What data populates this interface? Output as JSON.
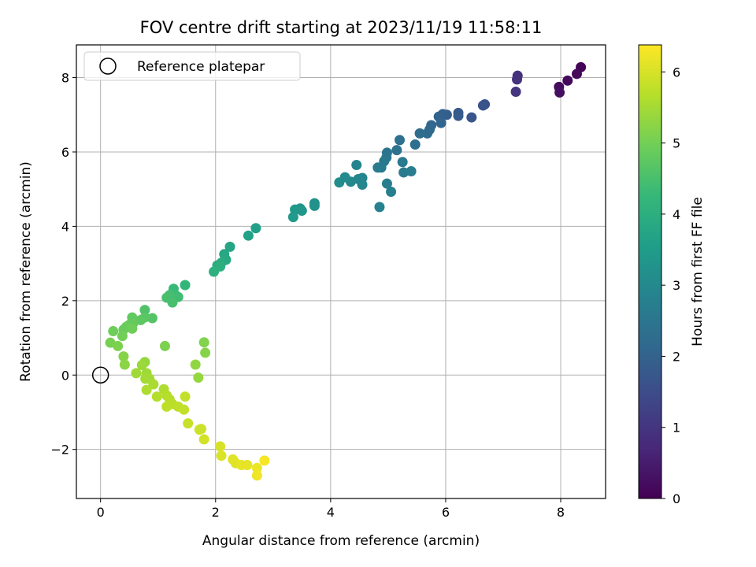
{
  "chart_data": {
    "type": "scatter",
    "title": "FOV centre drift starting at 2023/11/19 11:58:11",
    "xlabel": "Angular distance from reference (arcmin)",
    "ylabel": "Rotation from reference (arcmin)",
    "xlim": [
      -0.42,
      8.78
    ],
    "ylim": [
      -3.32,
      8.88
    ],
    "xticks": [
      0,
      2,
      4,
      6,
      8
    ],
    "xtick_labels": [
      "0",
      "2",
      "4",
      "6",
      "8"
    ],
    "yticks": [
      -2,
      0,
      2,
      4,
      6,
      8
    ],
    "ytick_labels": [
      "−2",
      "0",
      "2",
      "4",
      "6",
      "8"
    ],
    "grid": true,
    "legend": {
      "label": "Reference platepar",
      "placement": "top-left"
    },
    "reference_point": {
      "x": 0,
      "y": 0
    },
    "colorbar": {
      "label": "Hours from first FF file",
      "colormap": "viridis",
      "range": [
        0,
        6.38
      ],
      "ticks": [
        0,
        1,
        2,
        3,
        4,
        5,
        6
      ],
      "tick_labels": [
        "0",
        "1",
        "2",
        "3",
        "4",
        "5",
        "6"
      ],
      "colors": [
        "#440154",
        "#482878",
        "#3e4989",
        "#31688e",
        "#26828e",
        "#1f9e89",
        "#35b779",
        "#6ece58",
        "#b5de2b",
        "#fde725"
      ]
    },
    "points": [
      {
        "x": 8.35,
        "y": 8.28,
        "h": 0.05
      },
      {
        "x": 8.28,
        "y": 8.1,
        "h": 0.1
      },
      {
        "x": 8.12,
        "y": 7.92,
        "h": 0.15
      },
      {
        "x": 7.97,
        "y": 7.75,
        "h": 0.2
      },
      {
        "x": 7.98,
        "y": 7.6,
        "h": 0.25
      },
      {
        "x": 7.25,
        "y": 8.05,
        "h": 0.9
      },
      {
        "x": 7.24,
        "y": 7.95,
        "h": 0.95
      },
      {
        "x": 7.22,
        "y": 7.62,
        "h": 1.0
      },
      {
        "x": 6.68,
        "y": 7.28,
        "h": 1.6
      },
      {
        "x": 6.65,
        "y": 7.25,
        "h": 1.65
      },
      {
        "x": 6.45,
        "y": 6.93,
        "h": 1.7
      },
      {
        "x": 6.22,
        "y": 7.05,
        "h": 1.8
      },
      {
        "x": 6.22,
        "y": 6.97,
        "h": 1.85
      },
      {
        "x": 6.02,
        "y": 7.0,
        "h": 1.9
      },
      {
        "x": 5.95,
        "y": 7.02,
        "h": 1.95
      },
      {
        "x": 5.88,
        "y": 6.95,
        "h": 2.0
      },
      {
        "x": 5.92,
        "y": 6.78,
        "h": 2.05
      },
      {
        "x": 5.75,
        "y": 6.72,
        "h": 2.1
      },
      {
        "x": 5.72,
        "y": 6.6,
        "h": 2.15
      },
      {
        "x": 5.68,
        "y": 6.5,
        "h": 2.2
      },
      {
        "x": 5.55,
        "y": 6.5,
        "h": 2.25
      },
      {
        "x": 5.47,
        "y": 6.2,
        "h": 2.3
      },
      {
        "x": 5.2,
        "y": 6.32,
        "h": 2.35
      },
      {
        "x": 5.15,
        "y": 6.05,
        "h": 2.4
      },
      {
        "x": 4.98,
        "y": 5.98,
        "h": 2.45
      },
      {
        "x": 4.97,
        "y": 5.85,
        "h": 2.5
      },
      {
        "x": 4.93,
        "y": 5.75,
        "h": 2.55
      },
      {
        "x": 4.88,
        "y": 5.58,
        "h": 2.6
      },
      {
        "x": 4.82,
        "y": 5.58,
        "h": 2.65
      },
      {
        "x": 5.25,
        "y": 5.73,
        "h": 2.6
      },
      {
        "x": 5.27,
        "y": 5.45,
        "h": 2.65
      },
      {
        "x": 5.4,
        "y": 5.48,
        "h": 2.7
      },
      {
        "x": 4.98,
        "y": 5.15,
        "h": 2.7
      },
      {
        "x": 5.05,
        "y": 4.93,
        "h": 2.75
      },
      {
        "x": 4.85,
        "y": 4.52,
        "h": 2.8
      },
      {
        "x": 4.45,
        "y": 5.65,
        "h": 2.85
      },
      {
        "x": 4.55,
        "y": 5.3,
        "h": 2.9
      },
      {
        "x": 4.48,
        "y": 5.27,
        "h": 2.95
      },
      {
        "x": 4.55,
        "y": 5.12,
        "h": 2.95
      },
      {
        "x": 4.35,
        "y": 5.2,
        "h": 3.0
      },
      {
        "x": 4.25,
        "y": 5.32,
        "h": 3.05
      },
      {
        "x": 4.15,
        "y": 5.18,
        "h": 3.1
      },
      {
        "x": 3.72,
        "y": 4.62,
        "h": 3.2
      },
      {
        "x": 3.72,
        "y": 4.55,
        "h": 3.25
      },
      {
        "x": 3.47,
        "y": 4.48,
        "h": 3.3
      },
      {
        "x": 3.5,
        "y": 4.42,
        "h": 3.35
      },
      {
        "x": 3.38,
        "y": 4.45,
        "h": 3.4
      },
      {
        "x": 3.35,
        "y": 4.25,
        "h": 3.45
      },
      {
        "x": 2.7,
        "y": 3.95,
        "h": 3.6
      },
      {
        "x": 2.57,
        "y": 3.75,
        "h": 3.65
      },
      {
        "x": 2.25,
        "y": 3.45,
        "h": 3.75
      },
      {
        "x": 2.15,
        "y": 3.25,
        "h": 3.8
      },
      {
        "x": 2.18,
        "y": 3.1,
        "h": 3.85
      },
      {
        "x": 2.1,
        "y": 3.02,
        "h": 3.9
      },
      {
        "x": 2.03,
        "y": 2.95,
        "h": 3.95
      },
      {
        "x": 2.08,
        "y": 2.92,
        "h": 4.0
      },
      {
        "x": 1.97,
        "y": 2.78,
        "h": 4.05
      },
      {
        "x": 1.47,
        "y": 2.42,
        "h": 4.2
      },
      {
        "x": 1.27,
        "y": 2.32,
        "h": 4.3
      },
      {
        "x": 1.3,
        "y": 2.15,
        "h": 4.35
      },
      {
        "x": 1.35,
        "y": 2.1,
        "h": 4.4
      },
      {
        "x": 1.2,
        "y": 2.15,
        "h": 4.45
      },
      {
        "x": 1.15,
        "y": 2.08,
        "h": 4.5
      },
      {
        "x": 1.25,
        "y": 1.95,
        "h": 4.5
      },
      {
        "x": 0.77,
        "y": 1.75,
        "h": 4.6
      },
      {
        "x": 0.9,
        "y": 1.53,
        "h": 4.65
      },
      {
        "x": 0.77,
        "y": 1.55,
        "h": 4.7
      },
      {
        "x": 0.7,
        "y": 1.48,
        "h": 4.75
      },
      {
        "x": 0.55,
        "y": 1.55,
        "h": 4.8
      },
      {
        "x": 0.57,
        "y": 1.4,
        "h": 4.85
      },
      {
        "x": 0.5,
        "y": 1.35,
        "h": 4.85
      },
      {
        "x": 0.45,
        "y": 1.3,
        "h": 4.9
      },
      {
        "x": 0.4,
        "y": 1.22,
        "h": 4.9
      },
      {
        "x": 0.22,
        "y": 1.18,
        "h": 4.95
      },
      {
        "x": 0.55,
        "y": 1.25,
        "h": 4.95
      },
      {
        "x": 0.38,
        "y": 1.05,
        "h": 5.0
      },
      {
        "x": 0.17,
        "y": 0.87,
        "h": 5.05
      },
      {
        "x": 0.3,
        "y": 0.78,
        "h": 5.1
      },
      {
        "x": 1.12,
        "y": 0.78,
        "h": 5.1
      },
      {
        "x": 1.8,
        "y": 0.88,
        "h": 5.15
      },
      {
        "x": 1.82,
        "y": 0.6,
        "h": 5.2
      },
      {
        "x": 0.4,
        "y": 0.5,
        "h": 5.2
      },
      {
        "x": 0.42,
        "y": 0.28,
        "h": 5.25
      },
      {
        "x": 1.65,
        "y": 0.28,
        "h": 5.3
      },
      {
        "x": 1.7,
        "y": -0.07,
        "h": 5.35
      },
      {
        "x": 0.77,
        "y": 0.35,
        "h": 5.35
      },
      {
        "x": 0.72,
        "y": 0.27,
        "h": 5.4
      },
      {
        "x": 0.62,
        "y": 0.05,
        "h": 5.45
      },
      {
        "x": 0.8,
        "y": 0.05,
        "h": 5.45
      },
      {
        "x": 0.85,
        "y": -0.1,
        "h": 5.5
      },
      {
        "x": 0.78,
        "y": -0.1,
        "h": 5.5
      },
      {
        "x": 0.92,
        "y": -0.25,
        "h": 5.55
      },
      {
        "x": 0.8,
        "y": -0.4,
        "h": 5.6
      },
      {
        "x": 1.1,
        "y": -0.38,
        "h": 5.6
      },
      {
        "x": 0.98,
        "y": -0.58,
        "h": 5.65
      },
      {
        "x": 1.15,
        "y": -0.55,
        "h": 5.65
      },
      {
        "x": 1.2,
        "y": -0.65,
        "h": 5.7
      },
      {
        "x": 1.25,
        "y": -0.78,
        "h": 5.7
      },
      {
        "x": 1.15,
        "y": -0.85,
        "h": 5.75
      },
      {
        "x": 1.35,
        "y": -0.85,
        "h": 5.75
      },
      {
        "x": 1.45,
        "y": -0.93,
        "h": 5.8
      },
      {
        "x": 1.47,
        "y": -0.58,
        "h": 5.8
      },
      {
        "x": 1.52,
        "y": -1.3,
        "h": 5.85
      },
      {
        "x": 1.75,
        "y": -1.45,
        "h": 5.9
      },
      {
        "x": 1.72,
        "y": -1.47,
        "h": 5.9
      },
      {
        "x": 1.8,
        "y": -1.73,
        "h": 5.95
      },
      {
        "x": 2.08,
        "y": -1.92,
        "h": 6.0
      },
      {
        "x": 2.1,
        "y": -2.17,
        "h": 6.05
      },
      {
        "x": 2.3,
        "y": -2.27,
        "h": 6.1
      },
      {
        "x": 2.35,
        "y": -2.37,
        "h": 6.1
      },
      {
        "x": 2.45,
        "y": -2.42,
        "h": 6.15
      },
      {
        "x": 2.55,
        "y": -2.42,
        "h": 6.15
      },
      {
        "x": 2.72,
        "y": -2.5,
        "h": 6.2
      },
      {
        "x": 2.72,
        "y": -2.7,
        "h": 6.25
      },
      {
        "x": 2.85,
        "y": -2.3,
        "h": 6.3
      }
    ]
  }
}
